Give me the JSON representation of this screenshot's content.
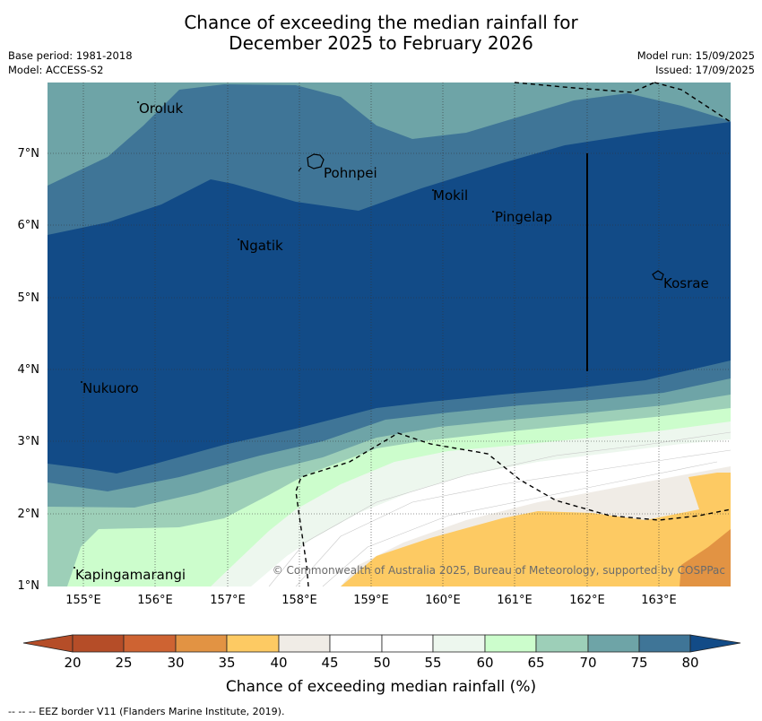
{
  "header": {
    "title_line1": "Chance of exceeding the median rainfall for",
    "title_line2": "December 2025 to February 2026",
    "base_period": "Base period: 1981-2018",
    "model": "Model: ACCESS-S2",
    "model_run": "Model run: 15/09/2025",
    "issued": "Issued: 17/09/2025"
  },
  "map": {
    "lat_ticks": [
      "7°N",
      "6°N",
      "5°N",
      "4°N",
      "3°N",
      "2°N",
      "1°N"
    ],
    "lon_ticks": [
      "155°E",
      "156°E",
      "157°E",
      "158°E",
      "159°E",
      "160°E",
      "161°E",
      "162°E",
      "163°E"
    ],
    "places": [
      {
        "name": "Oroluk"
      },
      {
        "name": "Pohnpei"
      },
      {
        "name": "Mokil"
      },
      {
        "name": "Pingelap"
      },
      {
        "name": "Ngatik"
      },
      {
        "name": "Kosrae"
      },
      {
        "name": "Nukuoro"
      },
      {
        "name": "Kapingamarangi"
      }
    ],
    "copyright": "© Commonwealth of Australia 2025, Bureau of Meteorology, supported by COSPPac",
    "colors": {
      "c75_80": "#124b87",
      "c70_75": "#3f7597",
      "c65_70": "#6ea4a7",
      "c60_65": "#9dcfb8",
      "c55_60": "#ccfdcc",
      "c50_55": "#edf7ee",
      "c45_50": "#ffffff",
      "c40_45": "#f0ece6",
      "c35_40": "#fdca63",
      "c30_35": "#e29343",
      "c25_30": "#ce6332",
      "c20_25": "#b54d28"
    }
  },
  "colorbar": {
    "ticks": [
      "20",
      "25",
      "30",
      "35",
      "40",
      "45",
      "50",
      "55",
      "60",
      "65",
      "70",
      "75",
      "80"
    ],
    "label": "Chance of exceeding median rainfall (%)"
  },
  "footer": {
    "eez_note": "--  --  -- EEZ border V11 (Flanders Marine Institute, 2019)."
  }
}
